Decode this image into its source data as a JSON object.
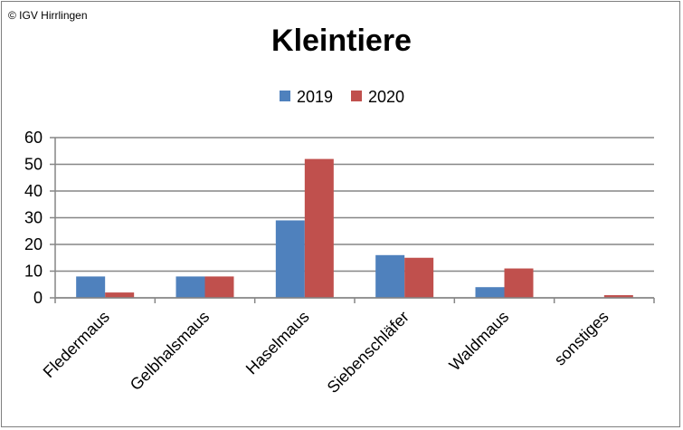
{
  "copyright": "© IGV Hirrlingen",
  "colors": {
    "2019": "#4f81bd",
    "2020": "#c0504d",
    "grid": "#868686"
  },
  "chart_data": {
    "type": "bar",
    "title": "Kleintiere",
    "xlabel": "",
    "ylabel": "",
    "categories": [
      "Fledermaus",
      "Gelbhalsmaus",
      "Haselmaus",
      "Siebenschläfer",
      "Waldmaus",
      "sonstiges"
    ],
    "series": [
      {
        "name": "2019",
        "values": [
          8,
          8,
          29,
          16,
          4,
          0
        ]
      },
      {
        "name": "2020",
        "values": [
          2,
          8,
          52,
          15,
          11,
          1
        ]
      }
    ],
    "ylim": [
      0,
      60
    ],
    "yticks": [
      0,
      10,
      20,
      30,
      40,
      50,
      60
    ],
    "grid": true,
    "legend": "top"
  }
}
